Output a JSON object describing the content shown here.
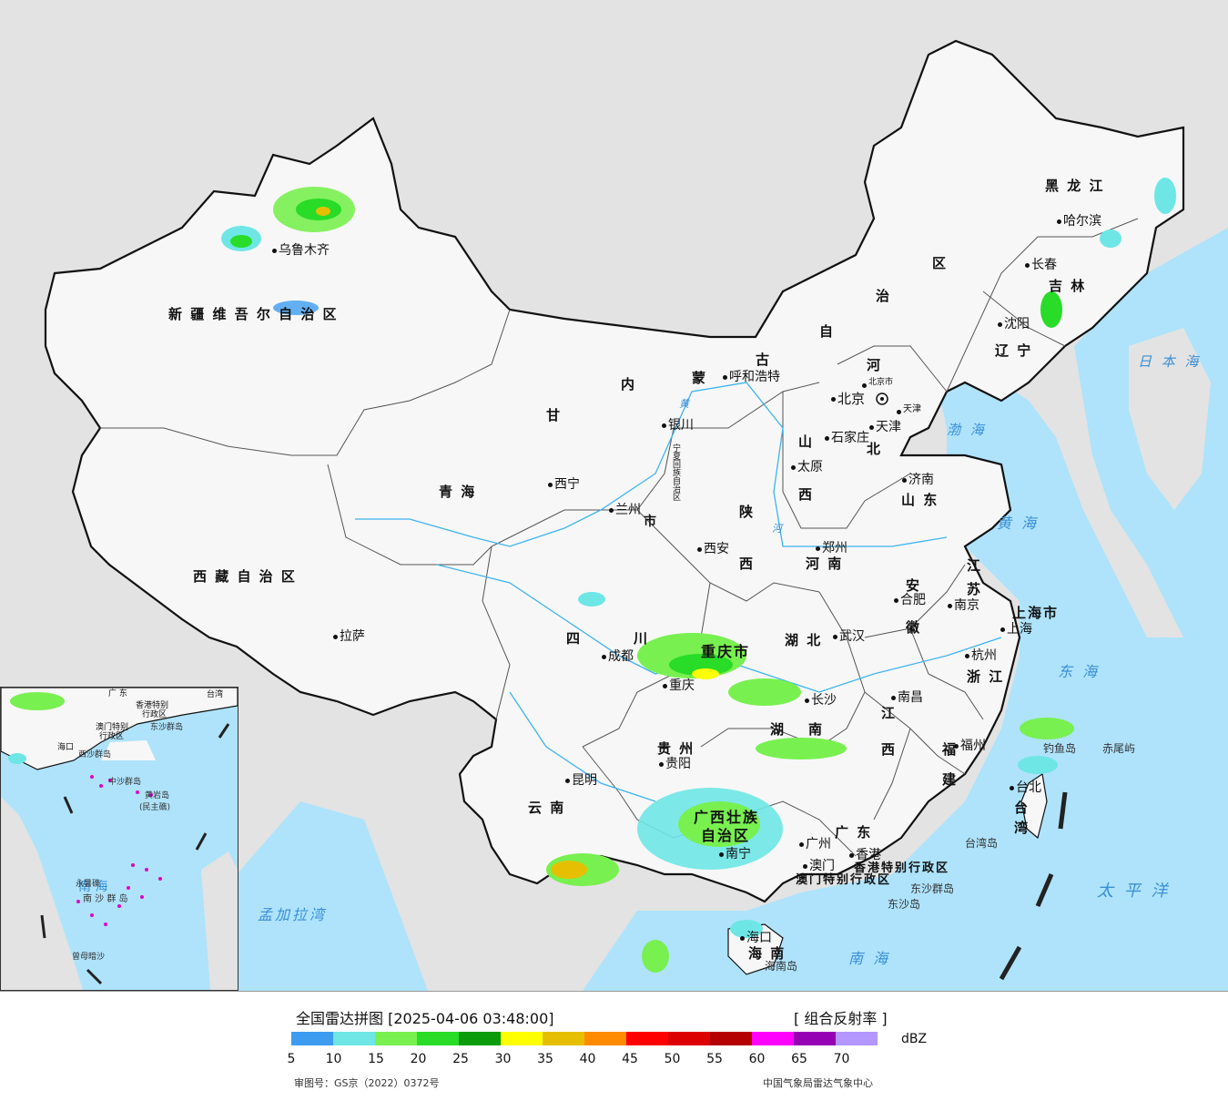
{
  "map": {
    "region_labels": [
      {
        "id": "xinjiang",
        "text": "新 疆 维 吾 尔 自 治 区"
      },
      {
        "id": "xizang",
        "text": "西 藏 自 治 区"
      },
      {
        "id": "qinghai",
        "text": "青        海"
      },
      {
        "id": "gansu",
        "text": "甘"
      },
      {
        "id": "neimenggu-1",
        "text": "内"
      },
      {
        "id": "neimenggu-2",
        "text": "蒙"
      },
      {
        "id": "neimenggu-3",
        "text": "古"
      },
      {
        "id": "neimenggu-4",
        "text": "自"
      },
      {
        "id": "neimenggu-5",
        "text": "治"
      },
      {
        "id": "neimenggu-6",
        "text": "区"
      },
      {
        "id": "heilongjiang",
        "text": "黑 龙 江"
      },
      {
        "id": "jilin",
        "text": "吉  林"
      },
      {
        "id": "liaoning",
        "text": "辽  宁"
      },
      {
        "id": "hebei-1",
        "text": "河"
      },
      {
        "id": "hebei-2",
        "text": "北"
      },
      {
        "id": "shanxi-1",
        "text": "山"
      },
      {
        "id": "shanxi-2",
        "text": "西"
      },
      {
        "id": "shandong",
        "text": "山  东"
      },
      {
        "id": "henan",
        "text": "河  南"
      },
      {
        "id": "shaanxi-1",
        "text": "陕"
      },
      {
        "id": "shaanxi-2",
        "text": "西"
      },
      {
        "id": "sichuan-1",
        "text": "四"
      },
      {
        "id": "sichuan-2",
        "text": "川"
      },
      {
        "id": "chongqing",
        "text": "重庆市"
      },
      {
        "id": "hubei",
        "text": "湖     北"
      },
      {
        "id": "hunan-1",
        "text": "湖"
      },
      {
        "id": "hunan-2",
        "text": "南"
      },
      {
        "id": "guizhou",
        "text": "贵  州"
      },
      {
        "id": "yunnan",
        "text": "云   南"
      },
      {
        "id": "guangxi-1",
        "text": "广西壮族"
      },
      {
        "id": "guangxi-2",
        "text": "自治区"
      },
      {
        "id": "guangdong",
        "text": "广    东"
      },
      {
        "id": "jiangxi-1",
        "text": "江"
      },
      {
        "id": "jiangxi-2",
        "text": "西"
      },
      {
        "id": "fujian-1",
        "text": "福"
      },
      {
        "id": "fujian-2",
        "text": "建"
      },
      {
        "id": "zhejiang",
        "text": "浙 江"
      },
      {
        "id": "anhui-1",
        "text": "安"
      },
      {
        "id": "anhui-2",
        "text": "徽"
      },
      {
        "id": "jiangsu-1",
        "text": "江"
      },
      {
        "id": "jiangsu-2",
        "text": "苏"
      },
      {
        "id": "shanghai",
        "text": "上海市"
      },
      {
        "id": "taiwan-1",
        "text": "台"
      },
      {
        "id": "taiwan-2",
        "text": "湾"
      },
      {
        "id": "hainan",
        "text": "海  南"
      },
      {
        "id": "ningxia",
        "text": "宁夏回族自治区"
      },
      {
        "id": "gansu-city",
        "text": "市"
      },
      {
        "id": "hk-sar",
        "text": "香港特别行政区"
      },
      {
        "id": "macau-sar",
        "text": "澳门特别行政区"
      }
    ],
    "cities": [
      {
        "id": "urumqi",
        "text": "乌鲁木齐"
      },
      {
        "id": "lhasa",
        "text": "拉萨"
      },
      {
        "id": "xining",
        "text": "西宁"
      },
      {
        "id": "lanzhou",
        "text": "兰州"
      },
      {
        "id": "yinchuan",
        "text": "银川"
      },
      {
        "id": "hohhot",
        "text": "呼和浩特"
      },
      {
        "id": "beijing",
        "text": "北京"
      },
      {
        "id": "beijing-city",
        "text": "北京市"
      },
      {
        "id": "tianjin",
        "text": "天津"
      },
      {
        "id": "tianjin-city",
        "text": "天津"
      },
      {
        "id": "shijiazhuang",
        "text": "石家庄"
      },
      {
        "id": "taiyuan",
        "text": "太原"
      },
      {
        "id": "jinan",
        "text": "济南"
      },
      {
        "id": "zhengzhou",
        "text": "郑州"
      },
      {
        "id": "xian",
        "text": "西安"
      },
      {
        "id": "chengdu",
        "text": "成都"
      },
      {
        "id": "chongqing-city",
        "text": "重庆"
      },
      {
        "id": "wuhan",
        "text": "武汉"
      },
      {
        "id": "changsha",
        "text": "长沙"
      },
      {
        "id": "guiyang",
        "text": "贵阳"
      },
      {
        "id": "kunming",
        "text": "昆明"
      },
      {
        "id": "nanning",
        "text": "南宁"
      },
      {
        "id": "guangzhou",
        "text": "广州"
      },
      {
        "id": "hongkong",
        "text": "香港"
      },
      {
        "id": "macau",
        "text": "澳门"
      },
      {
        "id": "nanchang",
        "text": "南昌"
      },
      {
        "id": "fuzhou",
        "text": "福州"
      },
      {
        "id": "hangzhou",
        "text": "杭州"
      },
      {
        "id": "hefei",
        "text": "合肥"
      },
      {
        "id": "nanjing",
        "text": "南京"
      },
      {
        "id": "shanghai-city",
        "text": "上海"
      },
      {
        "id": "taibei",
        "text": "台北"
      },
      {
        "id": "haikou",
        "text": "海口"
      },
      {
        "id": "harbin",
        "text": "哈尔滨"
      },
      {
        "id": "changchun",
        "text": "长春"
      },
      {
        "id": "shenyang",
        "text": "沈阳"
      }
    ],
    "water_labels": [
      {
        "id": "bohai",
        "text": "渤 海"
      },
      {
        "id": "huanghai",
        "text": "黄  海"
      },
      {
        "id": "donghai",
        "text": "东  海"
      },
      {
        "id": "nanhai",
        "text": "南     海"
      },
      {
        "id": "taipingyang",
        "text": "太  平  洋"
      },
      {
        "id": "ribenhai",
        "text": "日 本 海"
      },
      {
        "id": "mengjialawan",
        "text": "孟加拉湾"
      },
      {
        "id": "huanghe",
        "text": "黄"
      },
      {
        "id": "hehe",
        "text": "河"
      }
    ],
    "island_labels": [
      {
        "id": "taiwan-island",
        "text": "台湾岛"
      },
      {
        "id": "hainan-island",
        "text": "海南岛"
      },
      {
        "id": "dongsha",
        "text": "东沙群岛"
      },
      {
        "id": "dongsha-island",
        "text": "东沙岛"
      },
      {
        "id": "diaoyu",
        "text": "钓鱼岛"
      },
      {
        "id": "chiwei",
        "text": "赤尾屿"
      }
    ],
    "inset_labels": [
      {
        "id": "inset-nanhai",
        "text": "南    海"
      },
      {
        "id": "inset-xisha",
        "text": "西沙群岛"
      },
      {
        "id": "inset-zhongsha",
        "text": "中沙群岛"
      },
      {
        "id": "inset-huangyan",
        "text": "黄岩岛"
      },
      {
        "id": "inset-minzhu",
        "text": "(民主礁)"
      },
      {
        "id": "inset-yongshu",
        "text": "永暑礁"
      },
      {
        "id": "inset-nansha",
        "text": "南 沙 群 岛"
      },
      {
        "id": "inset-zengmu",
        "text": "曾母暗沙"
      },
      {
        "id": "inset-dongsha",
        "text": "东沙群岛"
      },
      {
        "id": "inset-hk",
        "text": "香港特别"
      },
      {
        "id": "inset-hk2",
        "text": "行政区"
      },
      {
        "id": "inset-macau",
        "text": "澳门特别"
      },
      {
        "id": "inset-macau2",
        "text": "行政区"
      },
      {
        "id": "inset-taiwan",
        "text": "台湾"
      },
      {
        "id": "inset-guangdong",
        "text": "广  东"
      },
      {
        "id": "inset-hainan",
        "text": "海口"
      }
    ]
  },
  "legend": {
    "title": "全国雷达拼图 [2025-04-06 03:48:00]",
    "product": "[ 组合反射率 ]",
    "unit": "dBZ",
    "colors": [
      "#3d9cf0",
      "#6ee6e6",
      "#78f050",
      "#28dc28",
      "#0a9c0a",
      "#ffff00",
      "#e6c000",
      "#ff8c00",
      "#ff0000",
      "#dc0000",
      "#b40000",
      "#ff00ff",
      "#9600b4",
      "#b496ff"
    ],
    "ticks": [
      "5",
      "10",
      "15",
      "20",
      "25",
      "30",
      "35",
      "40",
      "45",
      "50",
      "55",
      "60",
      "65",
      "70"
    ],
    "review_number": "审图号：GS京（2022）0372号",
    "source": "中国气象局雷达气象中心"
  }
}
